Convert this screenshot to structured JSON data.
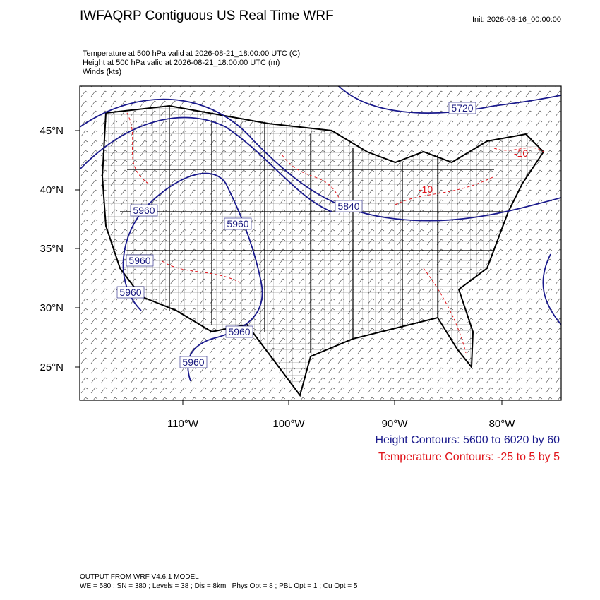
{
  "header": {
    "title": "IWFAQRP Contiguous US Real Time WRF",
    "init": "Init: 2026-08-16_00:00:00"
  },
  "fields": [
    "Temperature at 500 hPa valid at 2026-08-21_18:00:00 UTC   (C)",
    "Height at 500 hPa valid at 2026-08-21_18:00:00 UTC   (m)",
    "Winds   (kts)"
  ],
  "map": {
    "lat_labels": [
      "45°N",
      "40°N",
      "35°N",
      "30°N",
      "25°N"
    ],
    "lon_labels": [
      "110°W",
      "100°W",
      "90°W",
      "80°W"
    ],
    "contour_labels": [
      "5720",
      "5840",
      "5960",
      "5960",
      "5960",
      "5960",
      "5960",
      "5960",
      "-10",
      "-10"
    ]
  },
  "legend": [
    "Height Contours: 5600 to 6020 by 60",
    "Temperature Contours: -25 to 5 by 5"
  ],
  "footer": [
    "OUTPUT FROM WRF V4.6.1 MODEL",
    "WE = 580 ; SN = 380 ; Levels = 38 ; Dis = 8km ; Phys Opt = 8 ; PBL Opt = 1 ; Cu Opt = 5"
  ]
}
